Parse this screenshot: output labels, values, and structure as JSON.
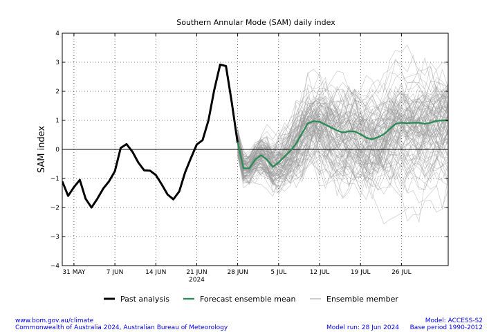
{
  "chart_data": {
    "type": "line",
    "title": "Southern Annular Mode (SAM) daily index",
    "xlabel": "",
    "ylabel": "SAM index",
    "ylim": [
      -4,
      4
    ],
    "yticks": [
      {
        "value": 4,
        "label": "4"
      },
      {
        "value": 3,
        "label": "3"
      },
      {
        "value": 2,
        "label": "2"
      },
      {
        "value": 1,
        "label": "1"
      },
      {
        "value": 0,
        "label": "0"
      },
      {
        "value": -1,
        "label": "−1"
      },
      {
        "value": -2,
        "label": "−2"
      },
      {
        "value": -3,
        "label": "−3"
      },
      {
        "value": -4,
        "label": "−4"
      }
    ],
    "xlim": [
      "2024-05-29",
      "2024-08-03"
    ],
    "xticks": [
      {
        "date": "2024-05-31",
        "label": "31 MAY"
      },
      {
        "date": "2024-06-07",
        "label": "7 JUN"
      },
      {
        "date": "2024-06-14",
        "label": "14 JUN"
      },
      {
        "date": "2024-06-21",
        "label": "21 JUN"
      },
      {
        "date": "2024-06-28",
        "label": "28 JUN"
      },
      {
        "date": "2024-07-05",
        "label": "5 JUL"
      },
      {
        "date": "2024-07-12",
        "label": "12 JUL"
      },
      {
        "date": "2024-07-19",
        "label": "19 JUL"
      },
      {
        "date": "2024-07-26",
        "label": "26 JUL"
      }
    ],
    "year_label": "2024",
    "grid": true,
    "zero_line": true,
    "legend": {
      "placement": "bottom",
      "entries": [
        "Past analysis",
        "Forecast ensemble mean",
        "Ensemble member"
      ]
    },
    "series": [
      {
        "name": "Past analysis",
        "color": "#000000",
        "x": [
          "2024-05-29",
          "2024-05-30",
          "2024-05-31",
          "2024-06-01",
          "2024-06-02",
          "2024-06-03",
          "2024-06-04",
          "2024-06-05",
          "2024-06-06",
          "2024-06-07",
          "2024-06-08",
          "2024-06-09",
          "2024-06-10",
          "2024-06-11",
          "2024-06-12",
          "2024-06-13",
          "2024-06-14",
          "2024-06-15",
          "2024-06-16",
          "2024-06-17",
          "2024-06-18",
          "2024-06-19",
          "2024-06-20",
          "2024-06-21",
          "2024-06-22",
          "2024-06-23",
          "2024-06-24",
          "2024-06-25",
          "2024-06-26",
          "2024-06-27",
          "2024-06-28"
        ],
        "y": [
          -1.1,
          -1.6,
          -1.3,
          -1.05,
          -1.7,
          -2.0,
          -1.7,
          -1.35,
          -1.1,
          -0.75,
          0.05,
          0.18,
          -0.08,
          -0.45,
          -0.72,
          -0.73,
          -0.88,
          -1.2,
          -1.55,
          -1.72,
          -1.45,
          -0.8,
          -0.3,
          0.17,
          0.32,
          1.0,
          2.05,
          2.92,
          2.87,
          1.6,
          0.22
        ]
      },
      {
        "name": "Forecast ensemble mean",
        "color": "#2e8b57",
        "x": [
          "2024-06-28",
          "2024-06-29",
          "2024-06-30",
          "2024-07-01",
          "2024-07-02",
          "2024-07-03",
          "2024-07-04",
          "2024-07-05",
          "2024-07-06",
          "2024-07-07",
          "2024-07-08",
          "2024-07-09",
          "2024-07-10",
          "2024-07-11",
          "2024-07-12",
          "2024-07-13",
          "2024-07-14",
          "2024-07-15",
          "2024-07-16",
          "2024-07-17",
          "2024-07-18",
          "2024-07-19",
          "2024-07-20",
          "2024-07-21",
          "2024-07-22",
          "2024-07-23",
          "2024-07-24",
          "2024-07-25",
          "2024-07-26",
          "2024-07-27",
          "2024-07-28",
          "2024-07-29",
          "2024-07-30",
          "2024-07-31",
          "2024-08-01",
          "2024-08-02",
          "2024-08-03"
        ],
        "y": [
          0.25,
          -0.65,
          -0.65,
          -0.35,
          -0.2,
          -0.35,
          -0.6,
          -0.45,
          -0.25,
          -0.05,
          0.2,
          0.55,
          0.9,
          0.97,
          0.95,
          0.85,
          0.75,
          0.65,
          0.58,
          0.62,
          0.62,
          0.52,
          0.4,
          0.35,
          0.42,
          0.52,
          0.7,
          0.88,
          0.92,
          0.9,
          0.92,
          0.92,
          0.88,
          0.92,
          0.98,
          1.0,
          1.0
        ]
      }
    ],
    "ensemble_member_count": 99
  },
  "footer": {
    "left_line1": "www.bom.gov.au/climate",
    "left_line2": "Commonwealth of Australia 2024, Australian Bureau of Meteorology",
    "center": "Model run: 28 Jun 2024",
    "right_line1": "Model: ACCESS-S2",
    "right_line2": "Base period 1990-2012"
  },
  "colors": {
    "ensemble_member": "#9a9a9a",
    "footer_text": "#0000ee"
  }
}
